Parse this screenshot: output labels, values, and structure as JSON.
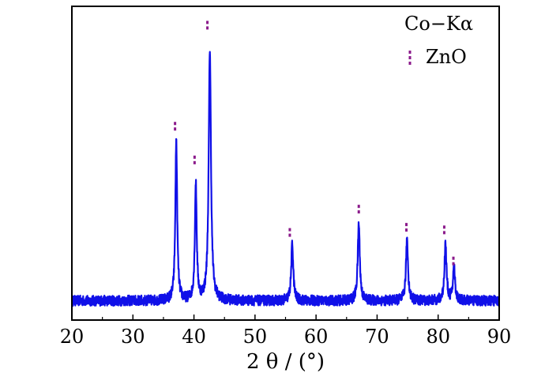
{
  "chart_data": {
    "type": "line",
    "title": "",
    "xlabel": "2 θ / (°)",
    "ylabel": "",
    "xlim": [
      20,
      90
    ],
    "x_ticks": [
      20,
      30,
      40,
      50,
      60,
      70,
      80,
      90
    ],
    "x_tick_labels": [
      "20",
      "30",
      "40",
      "50",
      "60",
      "70",
      "80",
      "90"
    ],
    "y_ticks_shown": false,
    "grid": false,
    "radiation_label": "Co−Kα",
    "legend": {
      "placement": "top-right",
      "entries": [
        {
          "label": "ZnO",
          "marker": "dashed-tick",
          "color": "#8b1a8b"
        }
      ]
    },
    "series": [
      {
        "name": "",
        "color": "#1010e8",
        "baseline": 5,
        "noise_amplitude": 2,
        "peaks": [
          {
            "two_theta": 37.1,
            "intensity": 62,
            "width": 0.18
          },
          {
            "two_theta": 40.3,
            "intensity": 45,
            "width": 0.18
          },
          {
            "two_theta": 42.6,
            "intensity": 97,
            "width": 0.22
          },
          {
            "two_theta": 56.1,
            "intensity": 22,
            "width": 0.2
          },
          {
            "two_theta": 67.0,
            "intensity": 30,
            "width": 0.2
          },
          {
            "two_theta": 74.9,
            "intensity": 24,
            "width": 0.2
          },
          {
            "two_theta": 81.2,
            "intensity": 22,
            "width": 0.2
          },
          {
            "two_theta": 82.6,
            "intensity": 13,
            "width": 0.2
          }
        ]
      }
    ],
    "peak_markers": {
      "label": "ZnO",
      "color": "#8b1a8b",
      "positions": [
        36.9,
        40.1,
        42.2,
        55.7,
        67.0,
        74.8,
        81.0,
        82.5
      ],
      "marker_intensity": [
        71,
        58,
        110,
        30,
        39,
        32,
        31,
        19
      ]
    },
    "ylim": [
      0,
      115
    ]
  }
}
